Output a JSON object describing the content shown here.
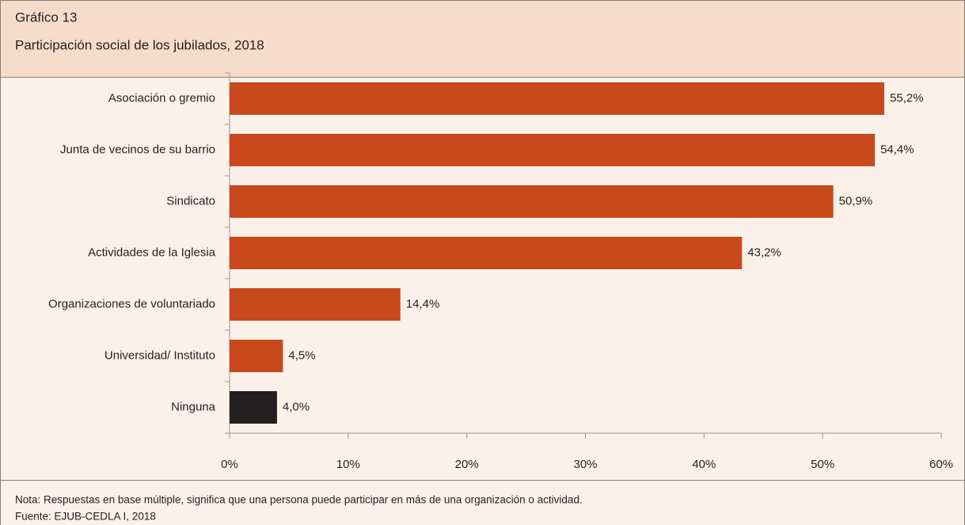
{
  "chart_data": {
    "type": "hbar",
    "heading": "Gráfico 13",
    "title": "Participación social de los jubilados, 2018",
    "categories": [
      "Asociación o gremio",
      "Junta de vecinos de su barrio",
      "Sindicato",
      "Actividades de la Iglesia",
      "Organizaciones de voluntariado",
      "Universidad/ Instituto",
      "Ninguna"
    ],
    "values": [
      55.2,
      54.4,
      50.9,
      43.2,
      14.4,
      4.5,
      4.0
    ],
    "value_labels": [
      "55,2%",
      "54,4%",
      "50,9%",
      "43,2%",
      "14,4%",
      "4,5%",
      "4,0%"
    ],
    "colors": [
      "#c8491b",
      "#c8491b",
      "#c8491b",
      "#c8491b",
      "#c8491b",
      "#c8491b",
      "#231f20"
    ],
    "xlim": [
      0,
      60
    ],
    "xticks": [
      {
        "value": 0,
        "label": "0%"
      },
      {
        "value": 10,
        "label": "10%"
      },
      {
        "value": 20,
        "label": "20%"
      },
      {
        "value": 30,
        "label": "30%"
      },
      {
        "value": 40,
        "label": "40%"
      },
      {
        "value": 50,
        "label": "50%"
      },
      {
        "value": 60,
        "label": "60%"
      }
    ],
    "note": "Nota: Respuestas en base múltiple, significa que una persona puede participar en más de una organización o actividad.",
    "source": "Fuente: EJUB-CEDLA I, 2018"
  }
}
